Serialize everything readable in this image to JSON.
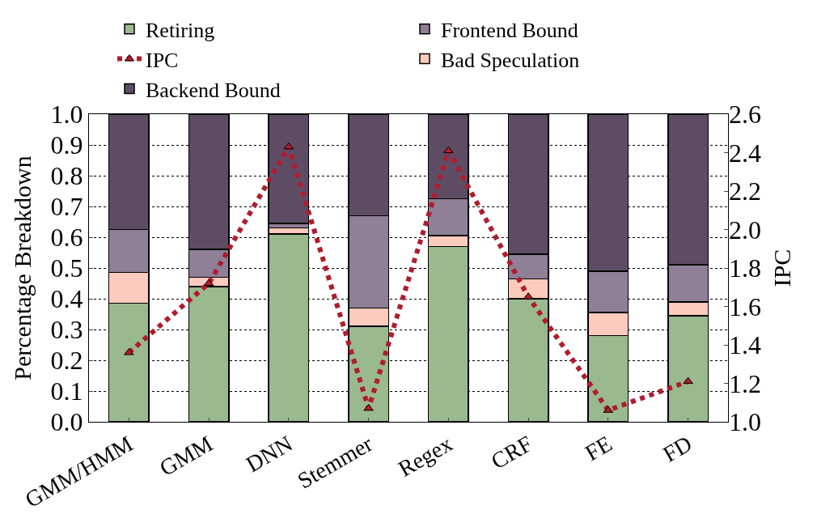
{
  "chart_data": {
    "type": "bar",
    "stacked": true,
    "categories": [
      "GMM/HMM",
      "GMM",
      "DNN",
      "Stemmer",
      "Regex",
      "CRF",
      "FE",
      "FD"
    ],
    "series": [
      {
        "name": "Retiring",
        "color": "#9ab98f",
        "values": [
          0.385,
          0.44,
          0.61,
          0.31,
          0.57,
          0.4,
          0.28,
          0.345
        ]
      },
      {
        "name": "Bad Speculation",
        "color": "#fdcbbd",
        "values": [
          0.1,
          0.03,
          0.02,
          0.06,
          0.035,
          0.065,
          0.075,
          0.045
        ]
      },
      {
        "name": "Frontend Bound",
        "color": "#8f7f97",
        "values": [
          0.14,
          0.09,
          0.015,
          0.3,
          0.12,
          0.08,
          0.135,
          0.12
        ]
      },
      {
        "name": "Backend Bound",
        "color": "#5e4c65",
        "values": [
          0.375,
          0.44,
          0.355,
          0.33,
          0.275,
          0.455,
          0.51,
          0.49
        ]
      },
      {
        "name": "IPC",
        "type": "line",
        "axis": "y2",
        "color": "#b01c2e",
        "values": [
          1.36,
          1.72,
          2.43,
          1.07,
          2.41,
          1.65,
          1.06,
          1.21
        ]
      }
    ],
    "ylabel": "Percentage Breakdown",
    "y2label": "IPC",
    "ylim": [
      0,
      1.0
    ],
    "yticks": [
      {
        "value": 0,
        "label": "0.0"
      },
      0.1,
      0.2,
      0.3,
      0.4,
      0.5,
      0.6,
      0.7,
      0.8,
      0.9,
      {
        "value": 1.0,
        "label": "1.0"
      }
    ],
    "y2lim": [
      1.0,
      2.6
    ],
    "y2ticks": [
      {
        "value": 1.0,
        "label": "1.0"
      },
      1.2,
      1.4,
      1.6,
      1.8,
      {
        "value": 2.0,
        "label": "2.0"
      },
      2.2,
      2.4,
      2.6
    ],
    "grid": "y",
    "legend": "top",
    "marker": "triangle",
    "line_style": "dotted"
  }
}
